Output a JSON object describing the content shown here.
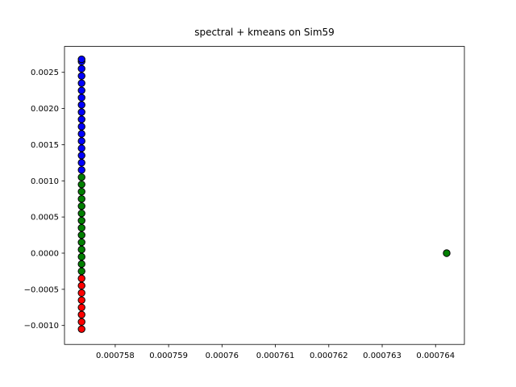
{
  "chart_data": {
    "type": "scatter",
    "title": "spectral + kmeans on Sim59",
    "xlim": [
      0.00075705,
      0.00076454
    ],
    "xticks": [
      0.000758,
      0.000759,
      0.00076,
      0.000761,
      0.000762,
      0.000763,
      0.000764
    ],
    "ylim": [
      -0.001262,
      0.002858
    ],
    "yticks": [
      {
        "value": -0.001,
        "label": "−0.0010"
      },
      {
        "value": -0.0005,
        "label": "−0.0005"
      },
      {
        "value": 0,
        "label": "0.0000"
      },
      {
        "value": 0.0005,
        "label": "0.0005"
      },
      {
        "value": 0.001,
        "label": "0.0010"
      },
      {
        "value": 0.0015,
        "label": "0.0015"
      },
      {
        "value": 0.002,
        "label": "0.0020"
      },
      0.0025
    ],
    "series": [
      {
        "color": "red",
        "x": [
          0.00075737,
          0.00075737,
          0.00075737,
          0.00075737,
          0.00075737,
          0.00075737,
          0.00075737,
          0.00075737
        ],
        "y": [
          -0.00105,
          -0.00095,
          -0.00085,
          -0.00075,
          -0.00065,
          -0.00055,
          -0.00045,
          -0.00035
        ]
      },
      {
        "color": "green",
        "x": [
          0.00075737,
          0.00075737,
          0.00075737,
          0.00075737,
          0.00075737,
          0.00075737,
          0.00075737,
          0.00075737,
          0.00075737,
          0.00075737,
          0.00075737,
          0.00075737,
          0.00075737,
          0.00075737,
          0.000764208
        ],
        "y": [
          -0.00025,
          -0.00015,
          -5e-05,
          5e-05,
          0.00015,
          0.00025,
          0.00035,
          0.00045,
          0.00055,
          0.00065,
          0.00075,
          0.00085,
          0.00095,
          0.00105,
          0
        ]
      },
      {
        "color": "blue",
        "x": [
          0.00075737,
          0.00075737,
          0.00075737,
          0.00075737,
          0.00075737,
          0.00075737,
          0.00075737,
          0.00075737,
          0.00075737,
          0.00075737,
          0.00075737,
          0.00075737,
          0.00075737,
          0.00075737,
          0.00075737,
          0.00075737,
          0.00075737
        ],
        "y": [
          0.00115,
          0.00125,
          0.00135,
          0.00145,
          0.00155,
          0.00165,
          0.00175,
          0.00185,
          0.00195,
          0.00205,
          0.00215,
          0.00225,
          0.00235,
          0.00245,
          0.00255,
          0.00265,
          0.00268
        ]
      }
    ]
  }
}
